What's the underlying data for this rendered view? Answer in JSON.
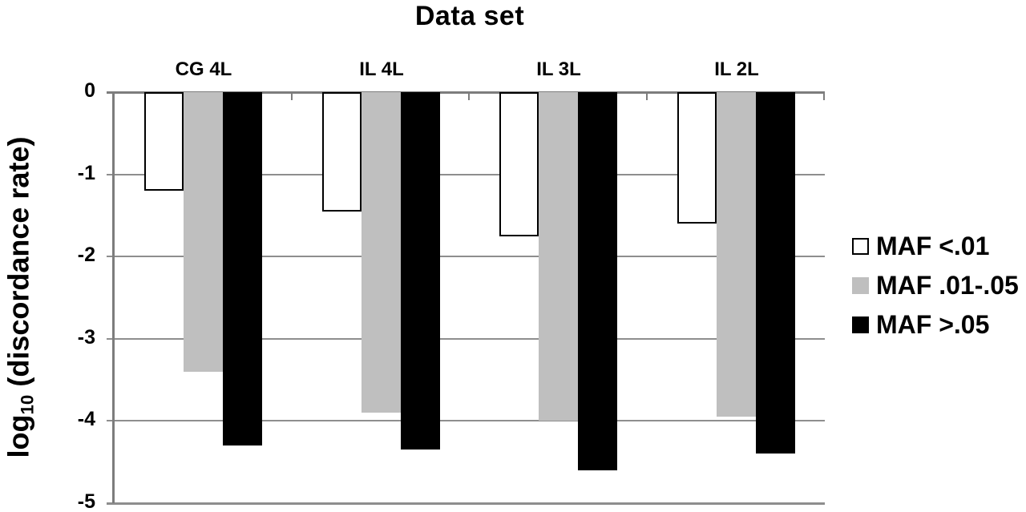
{
  "chart_data": {
    "type": "bar",
    "title": "Data set",
    "ylabel": "log10 (discordance rate)",
    "ylabel_parts": {
      "pre": "log",
      "sub": "10",
      "post": " (discordance rate)"
    },
    "categories": [
      "CG 4L",
      "IL 4L",
      "IL 3L",
      "IL 2L"
    ],
    "series": [
      {
        "name": "MAF <.01",
        "color": "#ffffff",
        "values": [
          -1.2,
          -1.45,
          -1.75,
          -1.6
        ]
      },
      {
        "name": "MAF .01-.05",
        "color": "#bfbfbf",
        "values": [
          -3.4,
          -3.9,
          -4.0,
          -3.95
        ]
      },
      {
        "name": "MAF >.05",
        "color": "#000000",
        "values": [
          -4.3,
          -4.35,
          -4.6,
          -4.4
        ]
      }
    ],
    "ylim": [
      -5,
      0
    ],
    "yticks": [
      0,
      -1,
      -2,
      -3,
      -4,
      -5
    ],
    "grid": true,
    "legend_position": "right",
    "axis_color": "#7d7d7d",
    "grid_color": "#8e8e8e"
  }
}
